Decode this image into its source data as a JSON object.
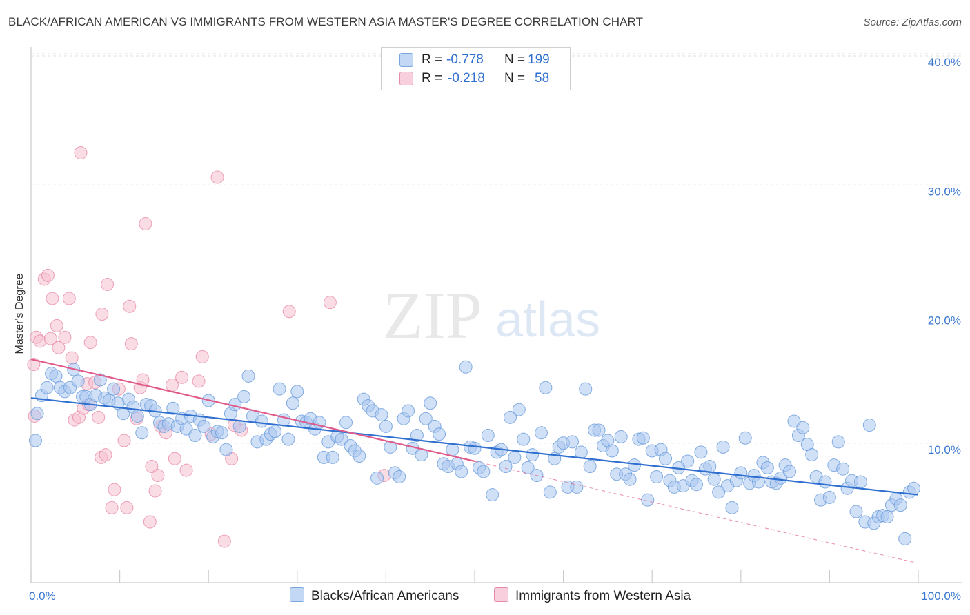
{
  "title": "BLACK/AFRICAN AMERICAN VS IMMIGRANTS FROM WESTERN ASIA MASTER'S DEGREE CORRELATION CHART",
  "source": "Source: ZipAtlas.com",
  "watermark": {
    "part1": "ZIP",
    "part2": "atlas"
  },
  "legend": {
    "rows": [
      {
        "r_label": "R =",
        "r_value": "-0.778",
        "n_label": "N =",
        "n_value": "199",
        "color": "#a9c7f0",
        "border": "#7aa5e0"
      },
      {
        "r_label": "R =",
        "r_value": "-0.218",
        "n_label": "N =",
        "n_value": "58",
        "color": "#f6bfd0",
        "border": "#e88aa6"
      }
    ]
  },
  "bottom_legend": [
    {
      "label": "Blacks/African Americans",
      "color": "#a9c7f0",
      "border": "#7aa5e0"
    },
    {
      "label": "Immigrants from Western Asia",
      "color": "#f6bfd0",
      "border": "#e88aa6"
    }
  ],
  "chart_data": {
    "type": "scatter",
    "title": "BLACK/AFRICAN AMERICAN VS IMMIGRANTS FROM WESTERN ASIA MASTER'S DEGREE CORRELATION CHART",
    "xlabel": "",
    "ylabel": "Master's Degree",
    "xlim": [
      0,
      100
    ],
    "ylim": [
      0,
      40
    ],
    "x_ticks": [
      "0.0%",
      "100.0%"
    ],
    "y_ticks": [
      {
        "value": 10,
        "label": "10.0%"
      },
      {
        "value": 20,
        "label": "20.0%"
      },
      {
        "value": 30,
        "label": "30.0%"
      },
      {
        "value": 40,
        "label": "40.0%"
      }
    ],
    "grid": true,
    "legend_position": "top-center",
    "series": [
      {
        "name": "Blacks/African Americans",
        "color": "#a9c7f0",
        "stroke": "#6f9fdc",
        "trend": {
          "x0": 0,
          "y0": 14.3,
          "x1": 100,
          "y1": 6.8,
          "color": "#2f6fd0"
        },
        "points": [
          [
            0.5,
            11.0
          ],
          [
            0.7,
            13.1
          ],
          [
            1.2,
            14.5
          ],
          [
            1.8,
            15.1
          ],
          [
            2.3,
            16.2
          ],
          [
            2.8,
            16.0
          ],
          [
            3.3,
            15.1
          ],
          [
            3.8,
            14.8
          ],
          [
            4.4,
            15.1
          ],
          [
            4.8,
            16.5
          ],
          [
            5.3,
            15.6
          ],
          [
            5.8,
            14.4
          ],
          [
            6.2,
            14.4
          ],
          [
            6.7,
            13.8
          ],
          [
            7.3,
            14.5
          ],
          [
            7.8,
            15.7
          ],
          [
            8.3,
            14.3
          ],
          [
            8.8,
            14.1
          ],
          [
            9.3,
            15.0
          ],
          [
            9.8,
            13.9
          ],
          [
            10.4,
            13.1
          ],
          [
            11.0,
            14.2
          ],
          [
            11.5,
            13.6
          ],
          [
            12.0,
            12.9
          ],
          [
            12.5,
            11.6
          ],
          [
            13.0,
            13.8
          ],
          [
            13.5,
            13.7
          ],
          [
            14.0,
            13.3
          ],
          [
            14.5,
            12.4
          ],
          [
            15.0,
            12.1
          ],
          [
            15.5,
            12.3
          ],
          [
            16.0,
            13.5
          ],
          [
            16.5,
            12.1
          ],
          [
            17.0,
            12.7
          ],
          [
            17.5,
            11.9
          ],
          [
            18.0,
            12.9
          ],
          [
            18.5,
            11.4
          ],
          [
            19.0,
            12.6
          ],
          [
            19.5,
            12.1
          ],
          [
            20.0,
            14.1
          ],
          [
            20.5,
            11.3
          ],
          [
            21.0,
            11.7
          ],
          [
            21.5,
            11.6
          ],
          [
            22.0,
            10.3
          ],
          [
            22.5,
            13.1
          ],
          [
            23.0,
            13.8
          ],
          [
            23.5,
            12.1
          ],
          [
            24.0,
            14.4
          ],
          [
            24.5,
            16.0
          ],
          [
            25.0,
            12.9
          ],
          [
            25.5,
            10.9
          ],
          [
            26.0,
            12.5
          ],
          [
            26.5,
            11.1
          ],
          [
            27.0,
            11.5
          ],
          [
            27.5,
            11.7
          ],
          [
            28.0,
            15.0
          ],
          [
            28.5,
            12.6
          ],
          [
            29.0,
            11.1
          ],
          [
            29.5,
            13.9
          ],
          [
            30.0,
            14.8
          ],
          [
            30.5,
            12.5
          ],
          [
            31.0,
            12.4
          ],
          [
            31.5,
            12.7
          ],
          [
            32.0,
            11.9
          ],
          [
            32.5,
            12.4
          ],
          [
            33.0,
            9.7
          ],
          [
            33.5,
            10.9
          ],
          [
            34.0,
            9.7
          ],
          [
            34.5,
            11.3
          ],
          [
            35.0,
            11.1
          ],
          [
            35.5,
            12.4
          ],
          [
            36.0,
            10.6
          ],
          [
            36.5,
            10.2
          ],
          [
            37.0,
            9.8
          ],
          [
            37.5,
            14.2
          ],
          [
            38.0,
            13.7
          ],
          [
            38.5,
            13.3
          ],
          [
            39.0,
            8.1
          ],
          [
            39.5,
            13.0
          ],
          [
            40.0,
            12.1
          ],
          [
            40.5,
            10.5
          ],
          [
            41.0,
            8.5
          ],
          [
            41.5,
            8.2
          ],
          [
            42.0,
            12.7
          ],
          [
            42.5,
            13.3
          ],
          [
            43.0,
            10.4
          ],
          [
            43.5,
            11.4
          ],
          [
            44.0,
            9.9
          ],
          [
            44.5,
            12.7
          ],
          [
            45.0,
            13.9
          ],
          [
            45.5,
            12.1
          ],
          [
            46.0,
            11.5
          ],
          [
            46.5,
            9.2
          ],
          [
            47.0,
            9.0
          ],
          [
            47.5,
            10.3
          ],
          [
            48.0,
            9.2
          ],
          [
            48.5,
            8.6
          ],
          [
            49.0,
            16.7
          ],
          [
            49.5,
            10.5
          ],
          [
            50.0,
            10.4
          ],
          [
            50.5,
            8.9
          ],
          [
            51.0,
            8.6
          ],
          [
            51.5,
            11.4
          ],
          [
            52.0,
            6.8
          ],
          [
            52.5,
            10.1
          ],
          [
            53.0,
            10.3
          ],
          [
            53.5,
            9.0
          ],
          [
            54.0,
            12.8
          ],
          [
            54.5,
            9.7
          ],
          [
            55.0,
            13.4
          ],
          [
            55.5,
            11.1
          ],
          [
            56.0,
            8.9
          ],
          [
            56.5,
            9.9
          ],
          [
            57.0,
            8.3
          ],
          [
            57.5,
            11.6
          ],
          [
            58.0,
            15.1
          ],
          [
            58.5,
            7.0
          ],
          [
            59.0,
            9.6
          ],
          [
            59.5,
            10.5
          ],
          [
            60.0,
            10.8
          ],
          [
            60.5,
            7.4
          ],
          [
            61.0,
            10.9
          ],
          [
            61.5,
            7.4
          ],
          [
            62.0,
            10.1
          ],
          [
            62.5,
            15.0
          ],
          [
            63.0,
            9.0
          ],
          [
            63.5,
            11.8
          ],
          [
            64.0,
            11.8
          ],
          [
            64.5,
            10.6
          ],
          [
            65.0,
            11.0
          ],
          [
            65.5,
            10.2
          ],
          [
            66.0,
            8.4
          ],
          [
            66.5,
            11.3
          ],
          [
            67.0,
            8.4
          ],
          [
            67.5,
            8.0
          ],
          [
            68.0,
            9.1
          ],
          [
            68.5,
            11.1
          ],
          [
            69.0,
            11.2
          ],
          [
            69.5,
            6.4
          ],
          [
            70.0,
            10.2
          ],
          [
            70.5,
            8.2
          ],
          [
            71.0,
            10.3
          ],
          [
            71.5,
            9.6
          ],
          [
            72.0,
            7.9
          ],
          [
            72.5,
            7.4
          ],
          [
            73.0,
            8.9
          ],
          [
            73.5,
            7.5
          ],
          [
            74.0,
            9.4
          ],
          [
            74.5,
            7.9
          ],
          [
            75.0,
            7.6
          ],
          [
            75.5,
            10.1
          ],
          [
            76.0,
            8.8
          ],
          [
            76.5,
            9.0
          ],
          [
            77.0,
            8.0
          ],
          [
            77.5,
            7.0
          ],
          [
            78.0,
            10.5
          ],
          [
            78.5,
            7.5
          ],
          [
            79.0,
            5.8
          ],
          [
            79.5,
            7.9
          ],
          [
            80.0,
            8.5
          ],
          [
            80.5,
            11.2
          ],
          [
            81.0,
            7.7
          ],
          [
            81.5,
            8.3
          ],
          [
            82.0,
            7.8
          ],
          [
            82.5,
            9.3
          ],
          [
            83.0,
            8.9
          ],
          [
            83.5,
            7.8
          ],
          [
            84.0,
            7.7
          ],
          [
            84.5,
            8.1
          ],
          [
            85.0,
            9.1
          ],
          [
            85.5,
            8.6
          ],
          [
            86.0,
            12.5
          ],
          [
            86.5,
            11.4
          ],
          [
            87.0,
            12.0
          ],
          [
            87.5,
            10.7
          ],
          [
            88.0,
            9.9
          ],
          [
            88.5,
            8.2
          ],
          [
            89.0,
            6.4
          ],
          [
            89.5,
            7.8
          ],
          [
            90.0,
            6.6
          ],
          [
            90.5,
            9.1
          ],
          [
            91.0,
            10.9
          ],
          [
            91.5,
            8.8
          ],
          [
            92.0,
            7.3
          ],
          [
            92.5,
            7.9
          ],
          [
            93.0,
            5.5
          ],
          [
            93.5,
            7.8
          ],
          [
            94.0,
            4.7
          ],
          [
            94.5,
            12.2
          ],
          [
            95.0,
            4.6
          ],
          [
            95.5,
            5.1
          ],
          [
            96.0,
            5.2
          ],
          [
            96.5,
            5.1
          ],
          [
            97.0,
            6.0
          ],
          [
            97.5,
            6.5
          ],
          [
            98.0,
            6.0
          ],
          [
            98.5,
            3.4
          ],
          [
            99.0,
            7.0
          ],
          [
            99.5,
            7.3
          ]
        ]
      },
      {
        "name": "Immigrants from Western Asia",
        "color": "#f6bfd0",
        "stroke": "#e88aa6",
        "trend": {
          "x0": 0,
          "y0": 17.3,
          "x1": 50,
          "y1": 9.4,
          "x_dash_end": 100,
          "y_dash_end": 1.5,
          "color": "#e05a8a"
        },
        "points": [
          [
            0.3,
            16.9
          ],
          [
            0.4,
            12.9
          ],
          [
            0.6,
            19.0
          ],
          [
            1.0,
            18.7
          ],
          [
            1.5,
            23.5
          ],
          [
            1.9,
            23.8
          ],
          [
            2.2,
            18.9
          ],
          [
            2.4,
            22.0
          ],
          [
            2.9,
            19.9
          ],
          [
            3.1,
            18.2
          ],
          [
            3.8,
            19.0
          ],
          [
            4.3,
            22.0
          ],
          [
            4.6,
            17.4
          ],
          [
            4.9,
            12.6
          ],
          [
            5.4,
            12.8
          ],
          [
            5.6,
            33.3
          ],
          [
            5.9,
            13.5
          ],
          [
            6.3,
            15.4
          ],
          [
            6.5,
            13.8
          ],
          [
            6.7,
            18.6
          ],
          [
            7.2,
            15.5
          ],
          [
            7.6,
            12.8
          ],
          [
            7.9,
            9.7
          ],
          [
            8.0,
            20.8
          ],
          [
            8.4,
            9.9
          ],
          [
            8.6,
            23.1
          ],
          [
            9.1,
            5.8
          ],
          [
            9.4,
            7.2
          ],
          [
            9.9,
            15.0
          ],
          [
            10.5,
            11.0
          ],
          [
            10.8,
            5.8
          ],
          [
            11.1,
            21.4
          ],
          [
            11.3,
            18.5
          ],
          [
            11.9,
            12.7
          ],
          [
            12.3,
            15.1
          ],
          [
            12.6,
            15.7
          ],
          [
            12.9,
            27.8
          ],
          [
            13.4,
            4.7
          ],
          [
            13.6,
            9.0
          ],
          [
            14.0,
            7.1
          ],
          [
            14.3,
            8.3
          ],
          [
            14.6,
            12.1
          ],
          [
            15.2,
            11.6
          ],
          [
            15.9,
            15.3
          ],
          [
            16.2,
            9.6
          ],
          [
            17.0,
            15.9
          ],
          [
            17.5,
            8.7
          ],
          [
            18.9,
            15.6
          ],
          [
            19.3,
            17.5
          ],
          [
            20.3,
            11.5
          ],
          [
            21.0,
            31.4
          ],
          [
            21.8,
            3.2
          ],
          [
            22.6,
            9.6
          ],
          [
            22.9,
            12.2
          ],
          [
            23.7,
            11.8
          ],
          [
            29.1,
            21.0
          ],
          [
            33.7,
            21.7
          ],
          [
            39.8,
            8.3
          ]
        ]
      }
    ]
  }
}
